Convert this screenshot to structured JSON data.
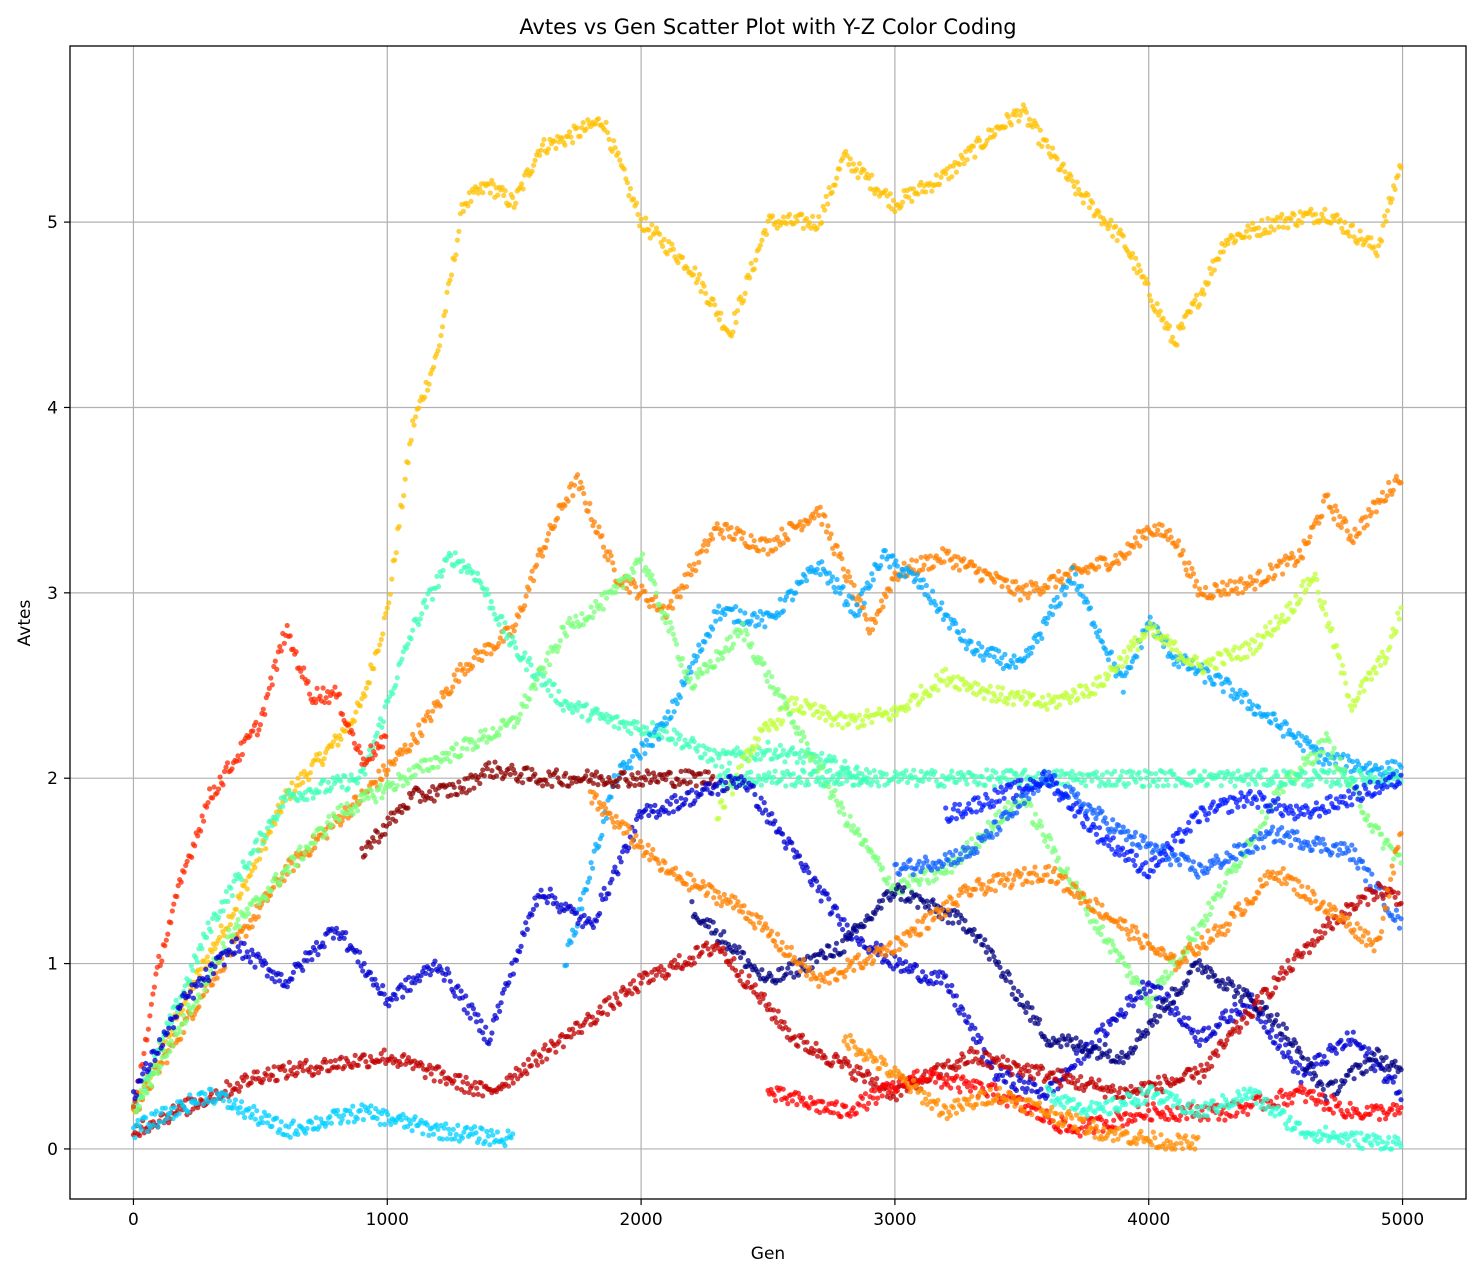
{
  "chart_data": {
    "type": "scatter",
    "title": "Avtes vs Gen Scatter Plot with Y-Z Color Coding",
    "xlabel": "Gen",
    "ylabel": "Avtes",
    "xlim": [
      -250,
      5250
    ],
    "ylim": [
      -0.27,
      5.95
    ],
    "xticks": [
      0,
      1000,
      2000,
      3000,
      4000,
      5000
    ],
    "yticks": [
      0,
      1,
      2,
      3,
      4,
      5
    ],
    "xtick_labels": [
      "0",
      "1000",
      "2000",
      "3000",
      "4000",
      "5000"
    ],
    "ytick_labels": [
      "0",
      "1",
      "2",
      "3",
      "4",
      "5"
    ],
    "grid": true,
    "legend": "none",
    "colormap": "jet",
    "series": [
      {
        "color": "#ffc000",
        "x": [
          0,
          200,
          400,
          600,
          800,
          900,
          1000,
          1100,
          1200,
          1300,
          1400,
          1500,
          1600,
          1700,
          1850,
          2000,
          2200,
          2350,
          2500,
          2700,
          2800,
          3000,
          3200,
          3400,
          3500,
          3700,
          3900,
          4100,
          4200,
          4300,
          4500,
          4700,
          4900,
          5000
        ],
        "y": [
          0.2,
          0.8,
          1.3,
          1.9,
          2.2,
          2.4,
          2.9,
          3.9,
          4.3,
          5.1,
          5.2,
          5.1,
          5.4,
          5.45,
          5.55,
          5.0,
          4.75,
          4.4,
          5.0,
          5.0,
          5.35,
          5.1,
          5.25,
          5.5,
          5.6,
          5.2,
          4.9,
          4.35,
          4.6,
          4.9,
          5.0,
          5.05,
          4.85,
          5.35
        ]
      },
      {
        "color": "#ff8000",
        "x": [
          0,
          300,
          600,
          900,
          1100,
          1300,
          1500,
          1600,
          1700,
          1750,
          1900,
          2100,
          2300,
          2500,
          2700,
          2900,
          3000,
          3200,
          3500,
          3700,
          3900,
          4000,
          4100,
          4200,
          4400,
          4600,
          4700,
          4800,
          5000
        ],
        "y": [
          0.2,
          0.9,
          1.5,
          1.9,
          2.2,
          2.6,
          2.8,
          3.2,
          3.5,
          3.6,
          3.1,
          2.9,
          3.35,
          3.25,
          3.45,
          2.8,
          3.1,
          3.2,
          3.0,
          3.1,
          3.2,
          3.35,
          3.3,
          3.0,
          3.05,
          3.2,
          3.5,
          3.3,
          3.65
        ]
      },
      {
        "color": "#40ffb8",
        "x": [
          0,
          300,
          600,
          900,
          1100,
          1250,
          1350,
          1500,
          1700,
          1900,
          2100,
          2300,
          2500,
          2700,
          2900
        ],
        "y": [
          0.2,
          1.2,
          1.9,
          2.0,
          2.8,
          3.2,
          3.1,
          2.7,
          2.4,
          2.3,
          2.25,
          2.1,
          2.15,
          2.1,
          2.0
        ]
      },
      {
        "color": "#00a8ff",
        "x": [
          1700,
          1900,
          2100,
          2300,
          2500,
          2700,
          2850,
          2950,
          3100,
          3300,
          3500,
          3700,
          3800,
          3900,
          4000,
          4100,
          4300,
          4500,
          4700,
          4900,
          5000
        ],
        "y": [
          1.0,
          2.0,
          2.3,
          2.9,
          2.85,
          3.15,
          2.9,
          3.2,
          3.05,
          2.7,
          2.6,
          3.1,
          2.8,
          2.5,
          2.85,
          2.65,
          2.5,
          2.3,
          2.1,
          2.05,
          2.05
        ]
      },
      {
        "color": "#c0ff38",
        "x": [
          2300,
          2450,
          2600,
          2800,
          3000,
          3200,
          3400,
          3600,
          3800,
          4000,
          4200,
          4400,
          4550,
          4650,
          4800,
          4950,
          5000
        ],
        "y": [
          1.8,
          2.2,
          2.4,
          2.3,
          2.35,
          2.55,
          2.45,
          2.4,
          2.5,
          2.8,
          2.6,
          2.7,
          2.9,
          3.1,
          2.4,
          2.7,
          2.95
        ]
      },
      {
        "color": "#7aff7a",
        "x": [
          0,
          400,
          800,
          1200,
          1500,
          1700,
          1900,
          2000,
          2200,
          2400,
          2600,
          2800,
          3000,
          3200,
          3500,
          3800,
          4000,
          4200,
          4500,
          4700,
          4900,
          5000
        ],
        "y": [
          0.2,
          1.2,
          1.8,
          2.1,
          2.3,
          2.8,
          3.0,
          3.2,
          2.5,
          2.8,
          2.3,
          1.8,
          1.4,
          1.5,
          1.9,
          1.2,
          0.8,
          1.2,
          1.9,
          2.2,
          1.7,
          1.55
        ]
      },
      {
        "color": "#ff2800",
        "x": [
          0,
          100,
          200,
          300,
          400,
          500,
          600,
          700,
          800,
          900,
          1000
        ],
        "y": [
          0.2,
          1.0,
          1.5,
          1.9,
          2.1,
          2.3,
          2.8,
          2.45,
          2.45,
          2.1,
          2.2
        ]
      },
      {
        "color": "#8b0000",
        "x": [
          900,
          1100,
          1300,
          1400,
          1600,
          1800,
          2000,
          2200,
          2300
        ],
        "y": [
          1.6,
          1.9,
          1.95,
          2.05,
          2.0,
          2.0,
          2.0,
          2.0,
          2.0
        ]
      },
      {
        "color": "#40ffb8",
        "x": [
          2300,
          2600,
          2900,
          3200,
          3500,
          3800,
          4100,
          4400,
          4700,
          5000
        ],
        "y": [
          2.0,
          2.0,
          2.0,
          2.0,
          2.0,
          2.0,
          2.0,
          2.0,
          2.0,
          2.0
        ]
      },
      {
        "color": "#0000d0",
        "x": [
          0,
          200,
          400,
          600,
          800,
          1000,
          1200,
          1400,
          1600,
          1800,
          2000,
          2200,
          2400,
          2600,
          2800,
          3000,
          3200,
          3400,
          3600,
          3800,
          4000,
          4200,
          4400,
          4600,
          4800,
          5000
        ],
        "y": [
          0.3,
          0.8,
          1.1,
          0.9,
          1.2,
          0.8,
          1.0,
          0.6,
          1.4,
          1.2,
          1.8,
          1.9,
          2.0,
          1.6,
          1.2,
          1.0,
          0.9,
          0.4,
          0.3,
          0.6,
          0.9,
          0.6,
          0.8,
          0.4,
          0.6,
          0.3
        ]
      },
      {
        "color": "#1060ff",
        "x": [
          3000,
          3300,
          3600,
          3900,
          4200,
          4500,
          4800,
          5000
        ],
        "y": [
          1.5,
          1.6,
          2.0,
          1.7,
          1.5,
          1.7,
          1.6,
          1.2
        ]
      },
      {
        "color": "#0018ff",
        "x": [
          3200,
          3400,
          3600,
          3800,
          4000,
          4200,
          4400,
          4600,
          4800,
          5000
        ],
        "y": [
          1.8,
          1.9,
          2.0,
          1.7,
          1.5,
          1.8,
          1.9,
          1.8,
          1.9,
          2.0
        ]
      },
      {
        "color": "#000080",
        "x": [
          2200,
          2500,
          2800,
          3000,
          3300,
          3600,
          3900,
          4200,
          4500,
          4700,
          4900,
          5000
        ],
        "y": [
          1.3,
          0.9,
          1.1,
          1.4,
          1.2,
          0.6,
          0.5,
          1.0,
          0.7,
          0.3,
          0.5,
          0.4
        ]
      },
      {
        "color": "#c00000",
        "x": [
          0,
          500,
          1000,
          1400,
          1700,
          2000,
          2300,
          2600,
          3000,
          3300,
          3600,
          3900,
          4200,
          4500,
          4700,
          4900,
          5000
        ],
        "y": [
          0.1,
          0.4,
          0.5,
          0.3,
          0.6,
          0.9,
          1.1,
          0.6,
          0.3,
          0.5,
          0.4,
          0.3,
          0.4,
          0.9,
          1.2,
          1.4,
          1.35
        ]
      },
      {
        "color": "#ff0000",
        "x": [
          2500,
          2800,
          3100,
          3400,
          3700,
          4000,
          4300,
          4600,
          4800,
          5000
        ],
        "y": [
          0.3,
          0.2,
          0.4,
          0.3,
          0.1,
          0.2,
          0.2,
          0.3,
          0.2,
          0.2
        ]
      },
      {
        "color": "#ff8000",
        "x": [
          1800,
          2100,
          2400,
          2700,
          3000,
          3300,
          3600,
          3900,
          4100,
          4300,
          4500,
          4700,
          4900,
          5000
        ],
        "y": [
          1.9,
          1.5,
          1.3,
          0.9,
          1.1,
          1.4,
          1.5,
          1.2,
          1.0,
          1.2,
          1.5,
          1.3,
          1.1,
          1.75
        ]
      },
      {
        "color": "#30ffd0",
        "x": [
          3600,
          3800,
          4000,
          4200,
          4400,
          4600,
          4800,
          5000
        ],
        "y": [
          0.3,
          0.2,
          0.3,
          0.2,
          0.3,
          0.1,
          0.05,
          0.03
        ]
      },
      {
        "color": "#00d0ff",
        "x": [
          0,
          300,
          600,
          900,
          1200,
          1500
        ],
        "y": [
          0.1,
          0.3,
          0.1,
          0.2,
          0.1,
          0.05
        ]
      },
      {
        "color": "#ff8c00",
        "x": [
          2800,
          3000,
          3200,
          3400,
          3600,
          3800,
          4000,
          4200
        ],
        "y": [
          0.6,
          0.4,
          0.2,
          0.3,
          0.2,
          0.1,
          0.05,
          0.02
        ]
      }
    ]
  }
}
